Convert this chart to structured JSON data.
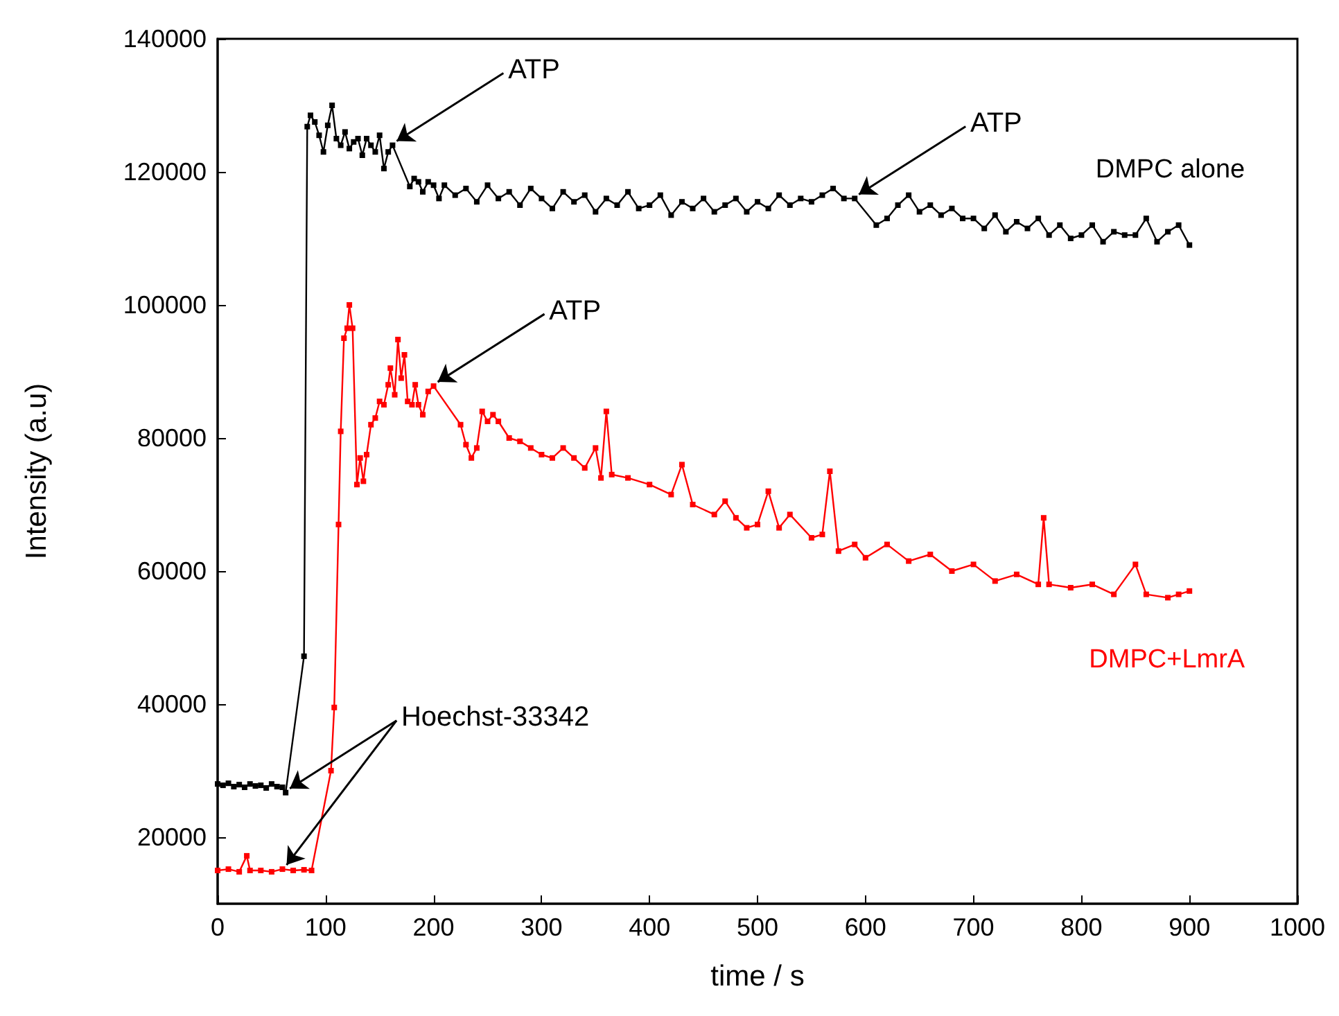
{
  "chart_data": {
    "type": "line",
    "xlabel": "time / s",
    "ylabel": "Intensity (a.u)",
    "xlim": [
      0,
      1000
    ],
    "xticks": [
      0,
      100,
      200,
      300,
      400,
      500,
      600,
      700,
      800,
      900,
      1000
    ],
    "ylim": [
      10000,
      140000
    ],
    "yticks": [
      20000,
      40000,
      60000,
      80000,
      100000,
      120000,
      140000
    ],
    "grid": false,
    "legend": false,
    "marker": "square",
    "line_style": "solid",
    "series": [
      {
        "name": "DMPC alone",
        "color": "#000000",
        "x": [
          0,
          5,
          10,
          15,
          20,
          25,
          30,
          35,
          40,
          45,
          50,
          55,
          60,
          63,
          80,
          83,
          86,
          90,
          94,
          98,
          102,
          106,
          110,
          114,
          118,
          122,
          126,
          130,
          134,
          138,
          142,
          146,
          150,
          154,
          158,
          162,
          178,
          182,
          186,
          190,
          195,
          200,
          205,
          210,
          220,
          230,
          240,
          250,
          260,
          270,
          280,
          290,
          300,
          310,
          320,
          330,
          340,
          350,
          360,
          370,
          380,
          390,
          400,
          410,
          420,
          430,
          440,
          450,
          460,
          470,
          480,
          490,
          500,
          510,
          520,
          530,
          540,
          550,
          560,
          570,
          580,
          590,
          610,
          620,
          630,
          640,
          650,
          660,
          670,
          680,
          690,
          700,
          710,
          720,
          730,
          740,
          750,
          760,
          770,
          780,
          790,
          800,
          810,
          820,
          830,
          840,
          850,
          860,
          870,
          880,
          890,
          900
        ],
        "values": [
          28000,
          27800,
          28100,
          27600,
          27900,
          27500,
          28000,
          27700,
          27800,
          27400,
          28000,
          27600,
          27500,
          26700,
          47200,
          126800,
          128500,
          127500,
          125500,
          123000,
          127000,
          130000,
          125000,
          124000,
          126000,
          123500,
          124500,
          125000,
          122500,
          125000,
          124000,
          123000,
          125500,
          120500,
          123000,
          124000,
          117800,
          119000,
          118500,
          117000,
          118500,
          118000,
          116000,
          118000,
          116500,
          117500,
          115500,
          118000,
          116000,
          117000,
          115000,
          117500,
          116000,
          114500,
          117000,
          115500,
          116500,
          114000,
          116000,
          115000,
          117000,
          114500,
          115000,
          116500,
          113500,
          115500,
          114500,
          116000,
          114000,
          115000,
          116000,
          114000,
          115500,
          114500,
          116500,
          115000,
          116000,
          115500,
          116500,
          117500,
          116000,
          116000,
          112000,
          113000,
          115000,
          116500,
          114000,
          115000,
          113500,
          114500,
          113000,
          113000,
          111500,
          113500,
          111000,
          112500,
          111500,
          113000,
          110500,
          112000,
          110000,
          110500,
          112000,
          109500,
          111000,
          110500,
          110500,
          113000,
          109500,
          111000,
          112000,
          109000
        ]
      },
      {
        "name": "DMPC+LmrA",
        "color": "#ff0000",
        "x": [
          0,
          10,
          20,
          27,
          30,
          40,
          50,
          60,
          70,
          80,
          87,
          105,
          108,
          112,
          114,
          117,
          120,
          122,
          125,
          129,
          132,
          135,
          138,
          142,
          146,
          150,
          154,
          158,
          160,
          164,
          167,
          170,
          173,
          176,
          180,
          183,
          186,
          190,
          195,
          200,
          225,
          230,
          235,
          240,
          245,
          250,
          255,
          260,
          270,
          280,
          290,
          300,
          310,
          320,
          330,
          340,
          350,
          355,
          360,
          365,
          380,
          400,
          420,
          430,
          440,
          460,
          470,
          480,
          490,
          500,
          510,
          520,
          530,
          550,
          560,
          567,
          575,
          590,
          600,
          620,
          640,
          660,
          680,
          700,
          720,
          740,
          760,
          765,
          770,
          790,
          810,
          830,
          850,
          860,
          880,
          890,
          900
        ],
        "values": [
          15000,
          15200,
          14800,
          17200,
          15000,
          15000,
          14800,
          15200,
          15000,
          15100,
          15000,
          30000,
          39500,
          67000,
          81000,
          95000,
          96500,
          100000,
          96500,
          73000,
          77000,
          73500,
          77500,
          82000,
          83000,
          85500,
          85000,
          88000,
          90500,
          86500,
          94800,
          89000,
          92500,
          85500,
          85000,
          88000,
          85000,
          83500,
          87000,
          87800,
          82000,
          79000,
          77000,
          78500,
          84000,
          82500,
          83500,
          82500,
          80000,
          79500,
          78500,
          77500,
          77000,
          78500,
          77000,
          75500,
          78500,
          74000,
          84000,
          74500,
          74000,
          73000,
          71500,
          76000,
          70000,
          68500,
          70500,
          68000,
          66500,
          67000,
          72000,
          66500,
          68500,
          65000,
          65500,
          75000,
          63000,
          64000,
          62000,
          64000,
          61500,
          62500,
          60000,
          61000,
          58500,
          59500,
          58000,
          68000,
          58000,
          57500,
          58000,
          56500,
          61000,
          56500,
          56000,
          56500,
          57000
        ]
      }
    ],
    "annotations": [
      {
        "text": "ATP",
        "x": 162,
        "y": 124000
      },
      {
        "text": "ATP",
        "x": 590,
        "y": 116000
      },
      {
        "text": "ATP",
        "x": 200,
        "y": 87800
      },
      {
        "text": "Hoechst-33342",
        "x": 63,
        "y": 26700
      }
    ]
  }
}
